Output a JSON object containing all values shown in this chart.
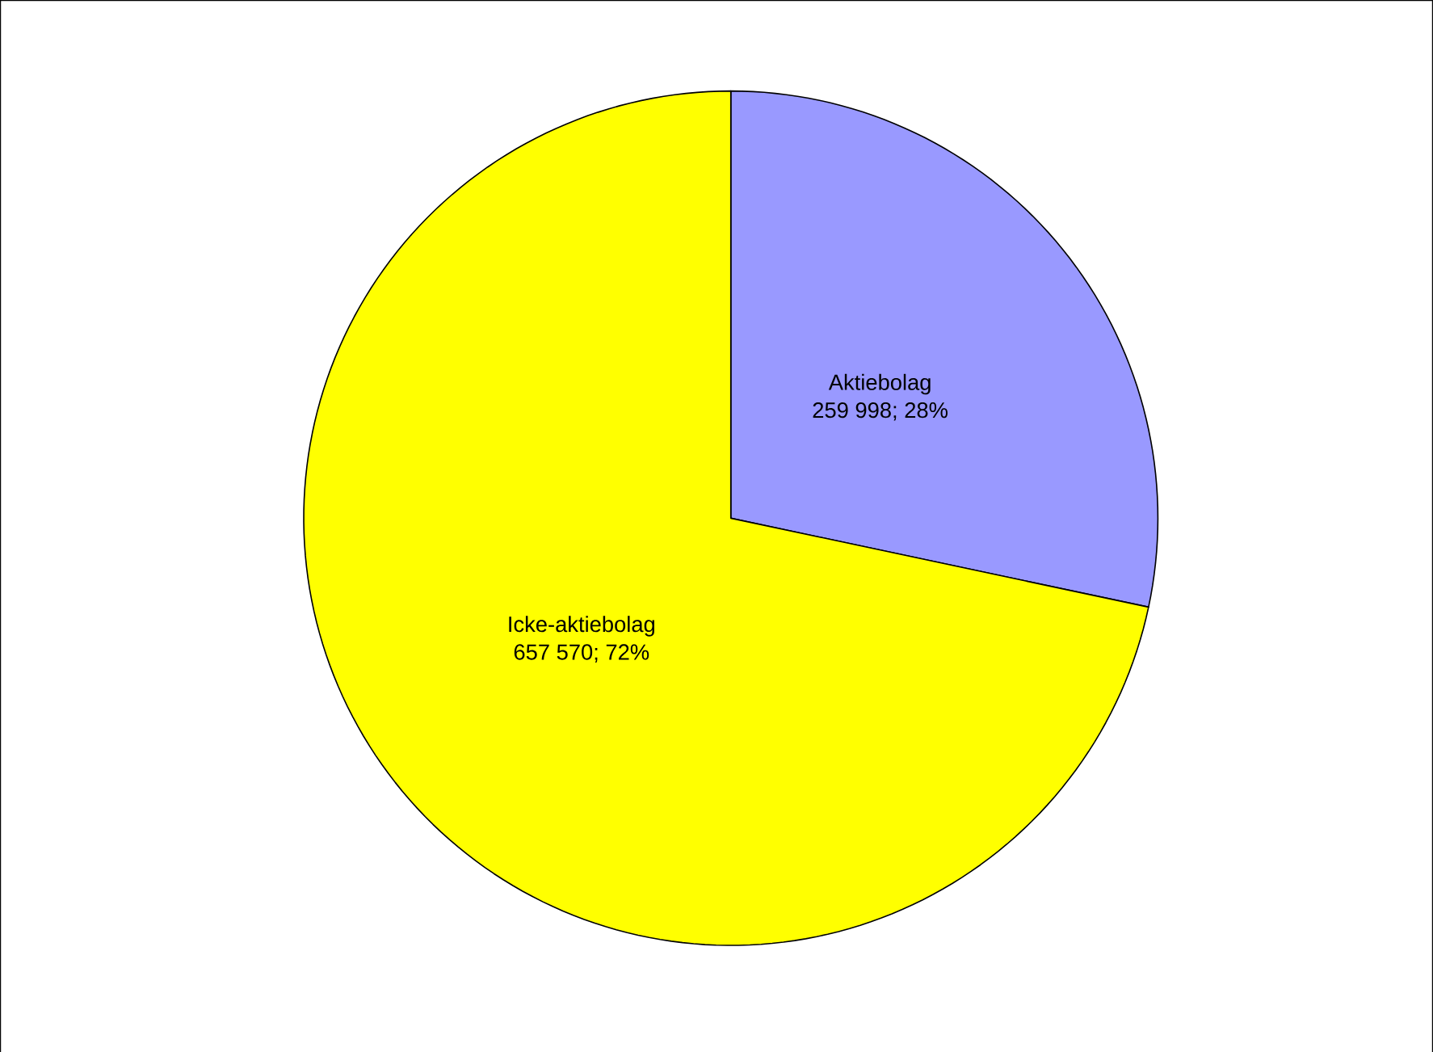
{
  "chart_data": {
    "type": "pie",
    "categories": [
      "Aktiebolag",
      "Icke-aktiebolag"
    ],
    "values": [
      259998,
      657570
    ],
    "value_labels": [
      "259 998; 28%",
      "657 570; 72%"
    ],
    "colors": [
      "#9999ff",
      "#ffff00"
    ]
  }
}
